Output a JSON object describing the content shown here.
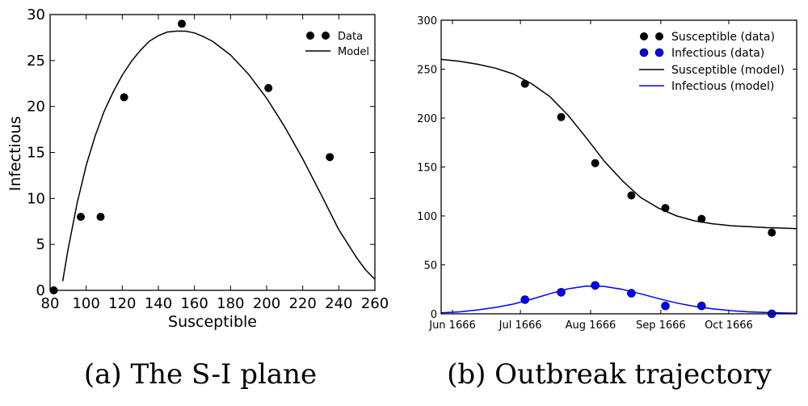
{
  "chart_data": [
    {
      "type": "scatter",
      "caption": "(a) The S-I plane",
      "xlabel": "Susceptible",
      "ylabel": "Infectious",
      "xlim": [
        80,
        260
      ],
      "ylim": [
        0,
        30
      ],
      "xticks": [
        80,
        100,
        120,
        140,
        160,
        180,
        200,
        220,
        240,
        260
      ],
      "yticks": [
        0,
        5,
        10,
        15,
        20,
        25,
        30
      ],
      "legend_position": "top-right",
      "grid": false,
      "series": [
        {
          "name": "Data",
          "kind": "points",
          "color": "#000000",
          "x": [
            82,
            97,
            108,
            121,
            153,
            201,
            235
          ],
          "y": [
            0,
            8,
            8,
            21,
            29,
            22,
            14.5
          ]
        },
        {
          "name": "Model",
          "kind": "line",
          "color": "#000000",
          "x": [
            87,
            90,
            95,
            100,
            105,
            110,
            115,
            120,
            125,
            130,
            135,
            140,
            145,
            150,
            155,
            160,
            165,
            170,
            180,
            190,
            200,
            210,
            220,
            230,
            240,
            250,
            255,
            260
          ],
          "y": [
            1.0,
            4.5,
            9.5,
            13.6,
            16.8,
            19.5,
            21.6,
            23.4,
            24.9,
            26.1,
            27.1,
            27.7,
            28.1,
            28.2,
            28.2,
            28.0,
            27.6,
            27.1,
            25.6,
            23.5,
            20.9,
            17.8,
            14.3,
            10.5,
            6.6,
            3.5,
            2.2,
            1.2
          ]
        }
      ]
    },
    {
      "type": "line",
      "caption": "(b) Outbreak trajectory",
      "xlabel": "",
      "ylabel": "",
      "x_type": "date",
      "xlim": [
        "1666-05-27",
        "1666-10-31"
      ],
      "ylim": [
        0,
        300
      ],
      "xticks": [
        "1666-06-01",
        "1666-07-01",
        "1666-08-01",
        "1666-09-01",
        "1666-10-01"
      ],
      "xtick_labels": [
        "Jun 1666",
        "Jul 1666",
        "Aug 1666",
        "Sep 1666",
        "Oct 1666"
      ],
      "yticks": [
        0,
        50,
        100,
        150,
        200,
        250,
        300
      ],
      "legend_position": "top-right",
      "grid": false,
      "series": [
        {
          "name": "Susceptible (data)",
          "kind": "points",
          "color": "#000000",
          "x": [
            "1666-07-03",
            "1666-07-19",
            "1666-08-03",
            "1666-08-19",
            "1666-09-03",
            "1666-09-19",
            "1666-10-20"
          ],
          "y": [
            235,
            201,
            154,
            121,
            108,
            97,
            83
          ]
        },
        {
          "name": "Infectious (data)",
          "kind": "points",
          "color": "#0000ff",
          "x": [
            "1666-07-03",
            "1666-07-19",
            "1666-08-03",
            "1666-08-19",
            "1666-09-03",
            "1666-09-19",
            "1666-10-20"
          ],
          "y": [
            14.5,
            22,
            29,
            21,
            8,
            8,
            0
          ]
        },
        {
          "name": "Susceptible (model)",
          "kind": "line",
          "color": "#000000",
          "x": [
            "1666-05-27",
            "1666-06-04",
            "1666-06-12",
            "1666-06-20",
            "1666-06-28",
            "1666-07-06",
            "1666-07-14",
            "1666-07-22",
            "1666-07-30",
            "1666-08-07",
            "1666-08-15",
            "1666-08-23",
            "1666-08-31",
            "1666-09-08",
            "1666-09-16",
            "1666-09-24",
            "1666-10-02",
            "1666-10-10",
            "1666-10-18",
            "1666-10-26",
            "1666-10-31"
          ],
          "y": [
            260,
            258,
            255,
            251,
            245,
            235,
            222,
            203,
            180,
            156,
            136,
            119,
            108,
            100,
            95,
            92,
            90,
            89,
            88,
            87.5,
            87
          ]
        },
        {
          "name": "Infectious (model)",
          "kind": "line",
          "color": "#0000ff",
          "x": [
            "1666-05-27",
            "1666-06-04",
            "1666-06-12",
            "1666-06-20",
            "1666-06-28",
            "1666-07-06",
            "1666-07-14",
            "1666-07-22",
            "1666-07-30",
            "1666-08-07",
            "1666-08-15",
            "1666-08-23",
            "1666-08-31",
            "1666-09-08",
            "1666-09-16",
            "1666-09-24",
            "1666-10-02",
            "1666-10-10",
            "1666-10-18",
            "1666-10-26",
            "1666-10-31"
          ],
          "y": [
            1.0,
            2.0,
            4.0,
            6.5,
            10.0,
            15.0,
            20.5,
            25.5,
            28.3,
            28.0,
            25.0,
            20.5,
            15.5,
            11.0,
            7.5,
            5.0,
            3.2,
            2.0,
            1.3,
            0.8,
            0.6
          ]
        }
      ]
    }
  ]
}
